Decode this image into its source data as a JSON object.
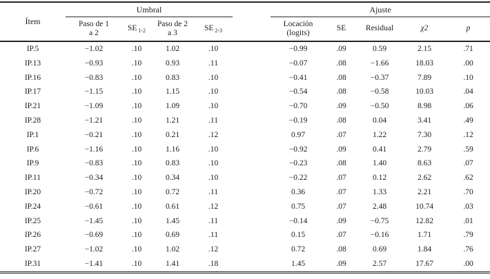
{
  "table": {
    "item_header": "Ítem",
    "group_umbral": "Umbral",
    "group_ajuste": "Ajuste",
    "headers": {
      "paso12_line1": "Paso de 1",
      "paso12_line2": "a 2",
      "se_base": "SE",
      "se12_sub": "1-2",
      "paso23_line1": "Paso de 2",
      "paso23_line2": "a 3",
      "se23_sub": "2-3",
      "locacion_line1": "Locación",
      "locacion_line2": "(logits)",
      "se": "SE",
      "residual": "Residual",
      "chi2": "χ2",
      "p": "p"
    },
    "column_keys": [
      "item",
      "paso-1-2",
      "se-1-2",
      "paso-2-3",
      "se-2-3",
      "locacion",
      "se",
      "residual",
      "chi2",
      "p"
    ],
    "rows": [
      [
        "IP.5",
        "−1.02",
        ".10",
        "1.02",
        ".10",
        "−0.99",
        ".09",
        "0.59",
        "2.15",
        ".71"
      ],
      [
        "IP.13",
        "−0.93",
        ".10",
        "0.93",
        ".11",
        "−0.07",
        ".08",
        "−1.66",
        "18.03",
        ".00"
      ],
      [
        "IP.16",
        "−0.83",
        ".10",
        "0.83",
        ".10",
        "−0.41",
        ".08",
        "−0.37",
        "7.89",
        ".10"
      ],
      [
        "IP.17",
        "−1.15",
        ".10",
        "1.15",
        ".10",
        "−0.54",
        ".08",
        "−0.58",
        "10.03",
        ".04"
      ],
      [
        "IP.21",
        "−1.09",
        ".10",
        "1.09",
        ".10",
        "−0.70",
        ".09",
        "−0.50",
        "8.98",
        ".06"
      ],
      [
        "IP.28",
        "−1.21",
        ".10",
        "1.21",
        ".11",
        "−0.19",
        ".08",
        "0.04",
        "3.41",
        ".49"
      ],
      [
        "IP.1",
        "−0.21",
        ".10",
        "0.21",
        ".12",
        "0.97",
        ".07",
        "1.22",
        "7.30",
        ".12"
      ],
      [
        "IP.6",
        "−1.16",
        ".10",
        "1.16",
        ".10",
        "−0.92",
        ".09",
        "0.41",
        "2.79",
        ".59"
      ],
      [
        "IP.9",
        "−0.83",
        ".10",
        "0.83",
        ".10",
        "−0.23",
        ".08",
        "1.40",
        "8.63",
        ".07"
      ],
      [
        "IP.11",
        "−0.34",
        ".10",
        "0.34",
        ".10",
        "−0.22",
        ".07",
        "0.12",
        "2.62",
        ".62"
      ],
      [
        "IP.20",
        "−0.72",
        ".10",
        "0.72",
        ".11",
        "0.36",
        ".07",
        "1.33",
        "2.21",
        ".70"
      ],
      [
        "IP.24",
        "−0.61",
        ".10",
        "0.61",
        ".12",
        "0.75",
        ".07",
        "2.48",
        "10.74",
        ".03"
      ],
      [
        "IP.25",
        "−1.45",
        ".10",
        "1.45",
        ".11",
        "−0.14",
        ".09",
        "−0.75",
        "12.82",
        ".01"
      ],
      [
        "IP.26",
        "−0.69",
        ".10",
        "0.69",
        ".11",
        "0.15",
        ".07",
        "−0.16",
        "1.71",
        ".79"
      ],
      [
        "IP.27",
        "−1.02",
        ".10",
        "1.02",
        ".12",
        "0.72",
        ".08",
        "0.69",
        "1.84",
        ".76"
      ],
      [
        "IP.31",
        "−1.41",
        ".10",
        "1.41",
        ".18",
        "1.45",
        ".09",
        "2.57",
        "17.67",
        ".00"
      ]
    ]
  }
}
